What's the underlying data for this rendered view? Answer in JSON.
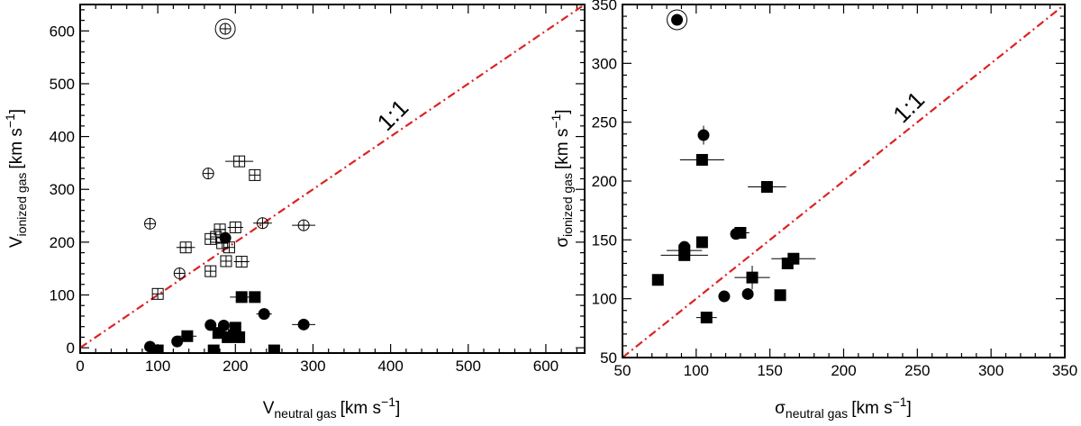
{
  "chart_data": [
    {
      "type": "scatter",
      "xlabel": {
        "main": "V",
        "sub": "neutral gas",
        "unit": "[km s",
        "sup": "−1",
        "close": "]"
      },
      "ylabel": {
        "main": "V",
        "sub": "ionized gas",
        "unit": "[km s",
        "sup": "−1",
        "close": "]"
      },
      "xlim": [
        0,
        650
      ],
      "ylim": [
        -10,
        650
      ],
      "xticks": [
        0,
        100,
        200,
        300,
        400,
        500,
        600
      ],
      "yticks": [
        0,
        100,
        200,
        300,
        400,
        500,
        600
      ],
      "one_to_one": {
        "label": "1:1",
        "label_x": 410,
        "label_y": 430,
        "color": "#dd2222"
      },
      "series": [
        {
          "name": "filled-circles",
          "marker": "circle",
          "filled": true,
          "points": [
            [
              90,
              2,
              0,
              0
            ],
            [
              125,
              12,
              0,
              0
            ],
            [
              168,
              43,
              0,
              0
            ],
            [
              185,
              42,
              0,
              0
            ],
            [
              237,
              64,
              10,
              0
            ],
            [
              288,
              44,
              15,
              0
            ],
            [
              187,
              208,
              0,
              0
            ]
          ]
        },
        {
          "name": "filled-squares",
          "marker": "square",
          "filled": true,
          "points": [
            [
              100,
              -5,
              0,
              0
            ],
            [
              138,
              22,
              12,
              0
            ],
            [
              172,
              -5,
              0,
              0
            ],
            [
              178,
              28,
              0,
              0
            ],
            [
              190,
              20,
              0,
              0
            ],
            [
              198,
              24,
              0,
              0
            ],
            [
              200,
              38,
              0,
              0
            ],
            [
              205,
              20,
              0,
              0
            ],
            [
              208,
              96,
              15,
              0
            ],
            [
              225,
              96,
              0,
              0
            ],
            [
              250,
              -5,
              0,
              0
            ]
          ]
        },
        {
          "name": "open-circles",
          "marker": "circle",
          "filled": false,
          "points": [
            [
              90,
              235,
              0,
              0
            ],
            [
              128,
              141,
              0,
              0
            ],
            [
              165,
              330,
              0,
              0
            ],
            [
              235,
              236,
              12,
              0
            ],
            [
              288,
              232,
              15,
              0
            ]
          ]
        },
        {
          "name": "open-squares",
          "marker": "square",
          "filled": false,
          "points": [
            [
              100,
              102,
              0,
              0
            ],
            [
              136,
              190,
              12,
              0
            ],
            [
              168,
              206,
              0,
              0
            ],
            [
              168,
              145,
              0,
              0
            ],
            [
              175,
              210,
              0,
              0
            ],
            [
              180,
              224,
              8,
              0
            ],
            [
              183,
              198,
              0,
              0
            ],
            [
              188,
              164,
              0,
              0
            ],
            [
              192,
              190,
              0,
              0
            ],
            [
              200,
              228,
              10,
              0
            ],
            [
              205,
              353,
              18,
              0
            ],
            [
              208,
              163,
              10,
              0
            ],
            [
              225,
              327,
              0,
              0
            ]
          ]
        },
        {
          "name": "ringed-circles",
          "marker": "ringed-circle",
          "filled": false,
          "points": [
            [
              187,
              604,
              0,
              0
            ]
          ]
        }
      ]
    },
    {
      "type": "scatter",
      "xlabel": {
        "main": "σ",
        "sub": "neutral gas",
        "unit": "[km s",
        "sup": "−1",
        "close": "]"
      },
      "ylabel": {
        "main": "σ",
        "sub": "ionized gas",
        "unit": "[km s",
        "sup": "−1",
        "close": "]"
      },
      "xlim": [
        50,
        350
      ],
      "ylim": [
        50,
        350
      ],
      "xticks": [
        50,
        100,
        150,
        200,
        250,
        300,
        350
      ],
      "yticks": [
        50,
        100,
        150,
        200,
        250,
        300,
        350
      ],
      "one_to_one": {
        "label": "1:1",
        "label_x": 248,
        "label_y": 258,
        "color": "#dd2222"
      },
      "series": [
        {
          "name": "filled-circles",
          "marker": "circle",
          "filled": true,
          "points": [
            [
              92,
              144,
              0,
              0
            ],
            [
              105,
              239,
              0,
              8
            ],
            [
              119,
              102,
              0,
              0
            ],
            [
              127,
              155,
              0,
              0
            ],
            [
              135,
              104,
              0,
              0
            ]
          ]
        },
        {
          "name": "filled-squares",
          "marker": "square",
          "filled": true,
          "points": [
            [
              74,
              116,
              0,
              0
            ],
            [
              92,
              137,
              16,
              0
            ],
            [
              92,
              141,
              12,
              0
            ],
            [
              104,
              148,
              0,
              0
            ],
            [
              104,
              218,
              15,
              0
            ],
            [
              107,
              84,
              7,
              0
            ],
            [
              130,
              156,
              6,
              0
            ],
            [
              138,
              118,
              12,
              10
            ],
            [
              148,
              195,
              13,
              0
            ],
            [
              157,
              103,
              0,
              0
            ],
            [
              162,
              130,
              0,
              0
            ],
            [
              166,
              134,
              15,
              0
            ]
          ]
        },
        {
          "name": "ringed-circles",
          "marker": "ringed-circle",
          "filled": true,
          "points": [
            [
              87,
              337,
              0,
              0
            ]
          ]
        }
      ]
    }
  ]
}
